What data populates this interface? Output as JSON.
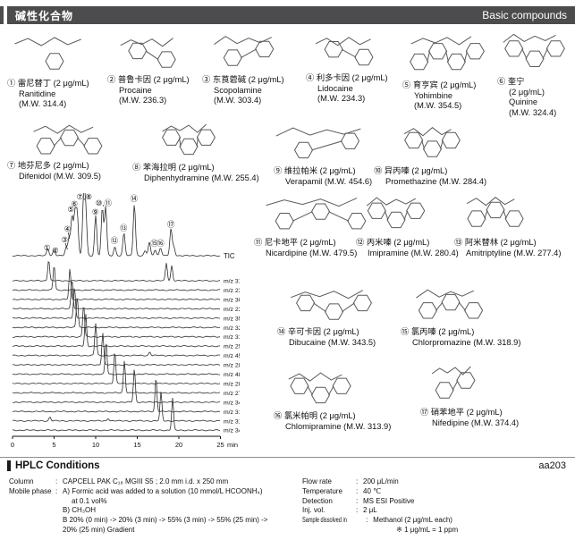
{
  "header": {
    "title_cn": "碱性化合物",
    "title_en": "Basic compounds",
    "bar_color": "#4c4c4e"
  },
  "compounds": [
    {
      "no": "①",
      "name_cn": "雷尼替丁",
      "conc": "(2 μg/mL)",
      "name_en": "Ranitidine",
      "mw": "(M.W. 314.4)",
      "fmt": "3"
    },
    {
      "no": "②",
      "name_cn": "普鲁卡因",
      "conc": "(2 μg/mL)",
      "name_en": "Procaine",
      "mw": "(M.W. 236.3)",
      "fmt": "3"
    },
    {
      "no": "③",
      "name_cn": "东莨菪碱",
      "conc": "(2 μg/mL)",
      "name_en": "Scopolamine",
      "mw": "(M.W. 303.4)",
      "fmt": "3"
    },
    {
      "no": "④",
      "name_cn": "利多卡因",
      "conc": "(2 μg/mL)",
      "name_en": "Lidocaine",
      "mw": "(M.W. 234.3)",
      "fmt": "3"
    },
    {
      "no": "⑤",
      "name_cn": "育亨宾",
      "conc": "(2 μg/mL)",
      "name_en": "Yohimbine",
      "mw": "(M.W. 354.5)",
      "fmt": "3"
    },
    {
      "no": "⑥",
      "name_cn": "奎宁",
      "conc": "(2 μg/mL)",
      "name_en": "Quinine",
      "mw": "(M.W. 324.4)",
      "fmt": "4"
    },
    {
      "no": "⑦",
      "name_cn": "地芬尼多",
      "conc": "(2 μg/mL)",
      "name_en": "Difenidol",
      "mw": "(M.W. 309.5)",
      "fmt": "2"
    },
    {
      "no": "⑧",
      "name_cn": "苯海拉明",
      "conc": "(2 μg/mL)",
      "name_en": "Diphenhydramine",
      "mw": "(M.W. 255.4)",
      "fmt": "2"
    },
    {
      "no": "⑨",
      "name_cn": "维拉帕米",
      "conc": "(2 μg/mL)",
      "name_en": "Verapamil",
      "mw": "(M.W. 454.6)",
      "fmt": "2"
    },
    {
      "no": "⑩",
      "name_cn": "异丙嗪",
      "conc": "(2 μg/mL)",
      "name_en": "Promethazine",
      "mw": "(M.W. 284.4)",
      "fmt": "2"
    },
    {
      "no": "⑪",
      "name_cn": "尼卡地平",
      "conc": "(2 μg/mL)",
      "name_en": "Nicardipine",
      "mw": "(M.W. 479.5)",
      "fmt": "2"
    },
    {
      "no": "⑫",
      "name_cn": "丙米嗪",
      "conc": "(2 μg/mL)",
      "name_en": "Imipramine",
      "mw": "(M.W. 280.4)",
      "fmt": "2"
    },
    {
      "no": "⑬",
      "name_cn": "阿米替林",
      "conc": "(2 μg/mL)",
      "name_en": "Amitriptyline",
      "mw": "(M.W. 277.4)",
      "fmt": "2"
    },
    {
      "no": "⑭",
      "name_cn": "辛可卡因",
      "conc": "(2 μg/mL)",
      "name_en": "Dibucaine",
      "mw": "(M.W. 343.5)",
      "fmt": "2"
    },
    {
      "no": "⑮",
      "name_cn": "氯丙嗪",
      "conc": "(2 μg/mL)",
      "name_en": "Chlorpromazine",
      "mw": "(M.W. 318.9)",
      "fmt": "2"
    },
    {
      "no": "⑯",
      "name_cn": "氯米帕明",
      "conc": "(2 μg/mL)",
      "name_en": "Chlomipramine",
      "mw": "(M.W. 313.9)",
      "fmt": "2"
    },
    {
      "no": "⑰",
      "name_cn": "硝苯地平",
      "conc": "(2 μg/mL)",
      "name_en": "Nifedipine",
      "mw": "(M.W. 374.4)",
      "fmt": "2"
    }
  ],
  "chart_data": {
    "type": "line",
    "title": "",
    "xlabel": "min",
    "x_range": [
      0,
      25
    ],
    "x_ticks": [
      0,
      5,
      10,
      15,
      20,
      25
    ],
    "grid": false,
    "tic": {
      "label": "TIC",
      "peaks": [
        [
          4.25,
          8
        ],
        [
          5.0,
          7
        ],
        [
          6.45,
          9
        ],
        [
          6.8,
          20
        ],
        [
          7.15,
          44
        ],
        [
          7.5,
          46
        ],
        [
          7.78,
          47
        ],
        [
          8.55,
          63
        ],
        [
          8.8,
          50
        ],
        [
          10.0,
          45
        ],
        [
          10.8,
          53
        ],
        [
          11.2,
          55
        ],
        [
          12.3,
          10
        ],
        [
          13.4,
          25
        ],
        [
          14.65,
          58
        ],
        [
          15.95,
          5
        ],
        [
          16.45,
          15
        ],
        [
          17.15,
          7
        ],
        [
          17.8,
          9
        ],
        [
          19.05,
          30
        ],
        [
          19.4,
          10
        ]
      ]
    },
    "traces": [
      {
        "label": "m/z 315",
        "peaks": [
          [
            4.35,
            24
          ],
          [
            18.5,
            20
          ],
          [
            19.15,
            17
          ]
        ]
      },
      {
        "label": "m/z 237",
        "peaks": [
          [
            5.0,
            28
          ]
        ]
      },
      {
        "label": "m/z 304",
        "peaks": [
          [
            6.9,
            34
          ]
        ]
      },
      {
        "label": "m/z 235",
        "peaks": [
          [
            7.15,
            34
          ]
        ]
      },
      {
        "label": "m/z 355",
        "peaks": [
          [
            7.45,
            34
          ]
        ]
      },
      {
        "label": "m/z 325",
        "peaks": [
          [
            7.78,
            35
          ]
        ]
      },
      {
        "label": "m/z 310",
        "peaks": [
          [
            8.55,
            36
          ]
        ]
      },
      {
        "label": "m/z 256",
        "peaks": [
          [
            8.8,
            36
          ]
        ]
      },
      {
        "label": "m/z 455",
        "peaks": [
          [
            10.0,
            36
          ],
          [
            16.5,
            4
          ]
        ]
      },
      {
        "label": "m/z 285",
        "peaks": [
          [
            10.85,
            36
          ]
        ]
      },
      {
        "label": "m/z 480",
        "peaks": [
          [
            11.25,
            36
          ]
        ]
      },
      {
        "label": "m/z 281",
        "peaks": [
          [
            12.3,
            36
          ]
        ]
      },
      {
        "label": "m/z 278",
        "peaks": [
          [
            13.45,
            36
          ]
        ]
      },
      {
        "label": "m/z 344",
        "peaks": [
          [
            14.65,
            37
          ]
        ]
      },
      {
        "label": "m/z 319",
        "peaks": [
          [
            17.25,
            38
          ]
        ]
      },
      {
        "label": "m/z 317",
        "peaks": [
          [
            4.5,
            4
          ],
          [
            11.5,
            3
          ],
          [
            17.85,
            32
          ]
        ]
      },
      {
        "label": "m/z 347",
        "peaks": [
          [
            19.25,
            36
          ]
        ]
      }
    ],
    "peak_labels": [
      {
        "no": "①",
        "t": 4.15,
        "y": 61
      },
      {
        "no": "②",
        "t": 5.15,
        "y": 64
      },
      {
        "no": "③",
        "t": 6.25,
        "y": 52
      },
      {
        "no": "④",
        "t": 6.6,
        "y": 40
      },
      {
        "no": "⑤",
        "t": 7.0,
        "y": 18
      },
      {
        "no": "⑥",
        "t": 7.45,
        "y": 12
      },
      {
        "no": "⑦,⑧",
        "t": 8.62,
        "y": 4
      },
      {
        "no": "⑨",
        "t": 9.95,
        "y": 21
      },
      {
        "no": "⑩,⑪",
        "t": 10.95,
        "y": 11
      },
      {
        "no": "⑫",
        "t": 12.25,
        "y": 53
      },
      {
        "no": "⑬",
        "t": 13.35,
        "y": 39
      },
      {
        "no": "⑭",
        "t": 14.6,
        "y": 6
      },
      {
        "no": "⑮",
        "t": 17.05,
        "y": 56
      },
      {
        "no": "⑯",
        "t": 17.8,
        "y": 56
      },
      {
        "no": "⑰",
        "t": 19.05,
        "y": 35
      }
    ]
  },
  "conditions": {
    "heading": "HPLC Conditions",
    "page_code": "aa203",
    "left": [
      {
        "label": "Column",
        "values": [
          "CAPCELL PAK C₁₈ MGIII S5 ; 2.0 mm i.d. x 250 mm"
        ]
      },
      {
        "label": "Mobile phase",
        "values": [
          "A) Formic acid was added to a solution (10 mmol/L HCOONH₄)",
          "at 0.1 vol%",
          "B) CH₃OH",
          "B 20% (0 min) -> 20% (3 min) -> 55% (3 min) -> 55% (25 min) ->",
          "20% (25 min) Gradient"
        ]
      }
    ],
    "right": [
      {
        "label": "Flow rate",
        "values": [
          "200 μL/min"
        ]
      },
      {
        "label": "Temperature",
        "values": [
          "40 ℃"
        ]
      },
      {
        "label": "Detection",
        "values": [
          "MS ESI Positive"
        ]
      },
      {
        "label": "Inj. vol.",
        "values": [
          "2 μL"
        ]
      },
      {
        "label": "Sample dissolved in",
        "values": [
          "Methanol (2 μg/mL each)",
          "※ 1 μg/mL = 1 ppm"
        ]
      }
    ]
  }
}
